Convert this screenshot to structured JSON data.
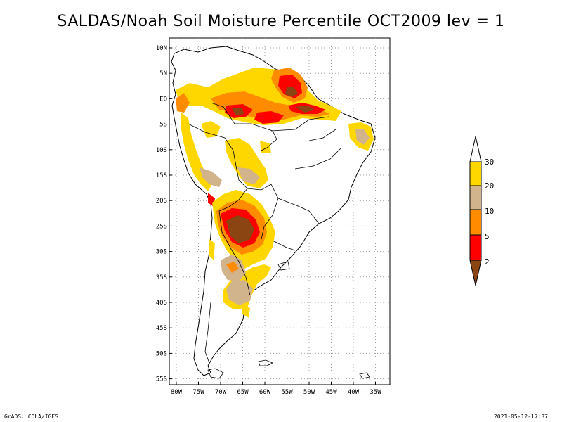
{
  "title": "SALDAS/Noah Soil Moisture Percentile OCT2009 lev = 1",
  "colors": {
    "lt2": "#8b4513",
    "p2_5": "#ff0000",
    "p5_10": "#ff8c00",
    "p10_20": "#d2b48c",
    "p20_30": "#ffd700",
    "gt30": "#ffffff",
    "boundary": "#000000",
    "grid": "#a0a0a0"
  },
  "map": {
    "lat_ticks": [
      "10N",
      "5N",
      "EQ",
      "5S",
      "10S",
      "15S",
      "20S",
      "25S",
      "30S",
      "35S",
      "40S",
      "45S",
      "50S",
      "55S"
    ],
    "lon_ticks": [
      "80W",
      "75W",
      "70W",
      "65W",
      "60W",
      "55W",
      "50W",
      "45W",
      "40W",
      "35W"
    ],
    "lat_range": [
      -56,
      11
    ],
    "lon_range": [
      -81,
      -34
    ]
  },
  "legend": {
    "labels": [
      "2",
      "5",
      "10",
      "20",
      "30"
    ]
  },
  "footer": {
    "left": "GrADS: COLA/IGES",
    "right": "2021-05-12-17:37"
  }
}
